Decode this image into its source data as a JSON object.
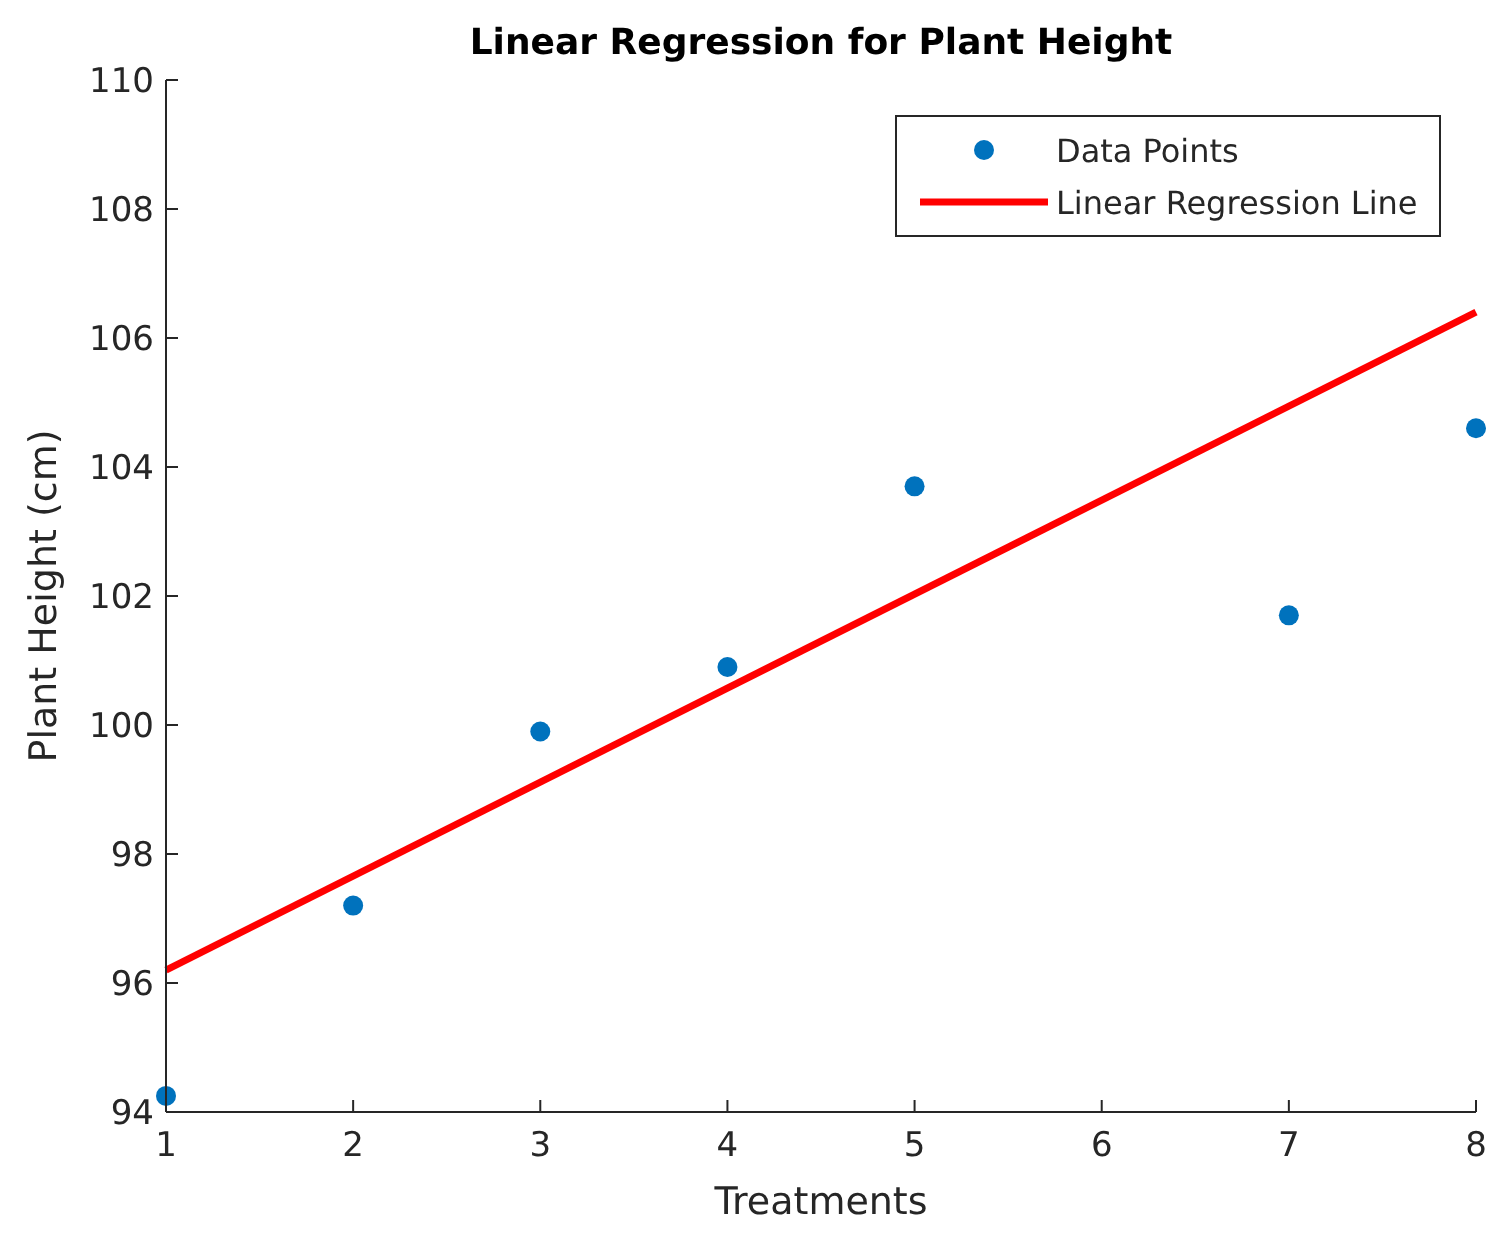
{
  "chart_data": {
    "type": "scatter",
    "title": "Linear Regression for Plant Height",
    "xlabel": "Treatments",
    "ylabel": "Plant Height (cm)",
    "xlim": [
      1,
      8
    ],
    "xticks": [
      1,
      2,
      3,
      4,
      5,
      6,
      7,
      8
    ],
    "ylim": [
      94,
      110
    ],
    "yticks": [
      94,
      96,
      98,
      100,
      102,
      104,
      106,
      108,
      110
    ],
    "grid": false,
    "legend": "top right",
    "series": [
      {
        "name": "Data Points",
        "color": "#0072bd",
        "marker": "circle",
        "x": [
          1,
          2,
          3,
          4,
          5,
          7,
          8
        ],
        "values": [
          94.25,
          97.2,
          99.9,
          100.9,
          103.7,
          101.7,
          104.6
        ]
      },
      {
        "name": "Linear Regression Line",
        "type": "line",
        "color": "#ff0000",
        "marker": "none",
        "line_style": "solid",
        "x": [
          1,
          8
        ],
        "values": [
          96.2,
          106.4
        ]
      }
    ]
  }
}
